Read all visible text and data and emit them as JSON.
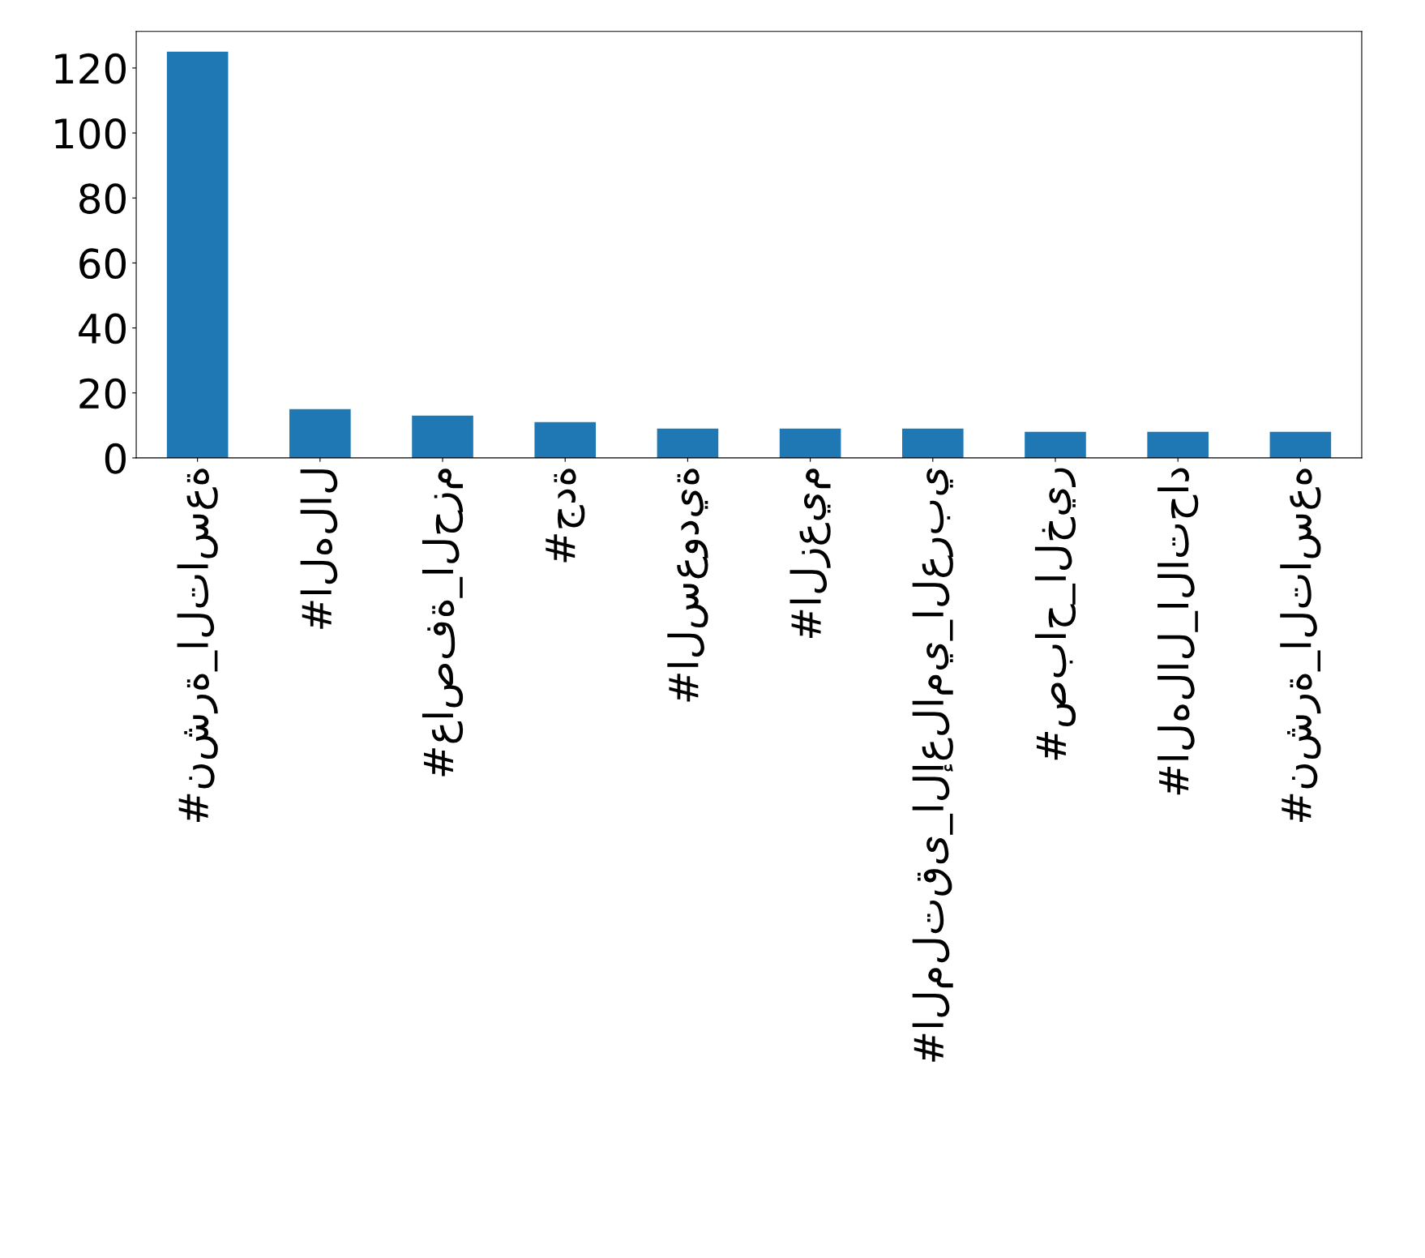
{
  "chart_data": {
    "type": "bar",
    "categories": [
      "#نشرة_التاسعة",
      "#الهلال",
      "#عاصفة_الحزم",
      "#جدة",
      "#السعودية",
      "#الزعيم",
      "#الملتقى_الإعلامي_العربي",
      "#صباح_الخير",
      "#الهلال_الاتحاد",
      "#نشرة_التاسعه"
    ],
    "values": [
      125,
      15,
      13,
      11,
      9,
      9,
      9,
      8,
      8,
      8
    ],
    "color": "#1f77b4",
    "ylim": [
      0,
      131.25
    ],
    "yticks": [
      0,
      20,
      40,
      60,
      80,
      100,
      120
    ],
    "grid": false,
    "legend": false
  }
}
